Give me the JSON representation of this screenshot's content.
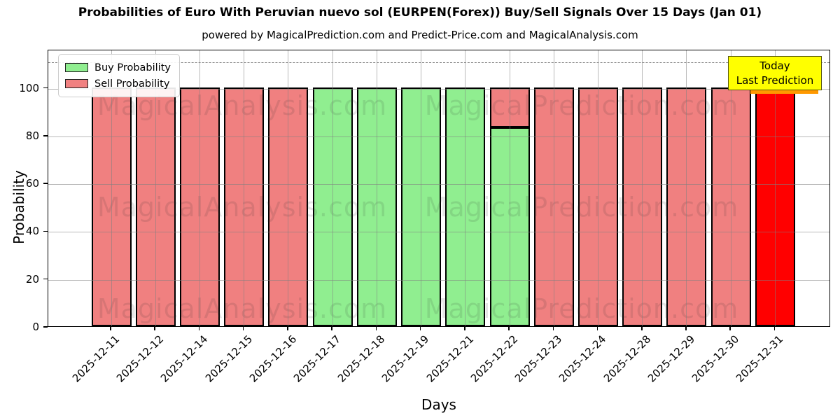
{
  "chart": {
    "title": "Probabilities of Euro With Peruvian nuevo sol (EURPEN(Forex)) Buy/Sell Signals Over 15 Days (Jan 01)",
    "subtitle": "powered by MagicalPrediction.com and Predict-Price.com and MagicalAnalysis.com",
    "xlabel": "Days",
    "ylabel": "Probability",
    "legend": [
      {
        "label": "Buy Probability",
        "color": "#90ee90"
      },
      {
        "label": "Sell Probability",
        "color": "#f08080"
      }
    ],
    "annotation": {
      "line1": "Today",
      "line2": "Last Prediction",
      "bg_color": "#ffff00"
    },
    "watermarks": [
      "MagicalAnalysis.com",
      "MagicalPrediction.com"
    ]
  },
  "chart_data": {
    "type": "bar",
    "stacked": true,
    "title": "Probabilities of Euro With Peruvian nuevo sol (EURPEN(Forex)) Buy/Sell Signals Over 15 Days (Jan 01)",
    "xlabel": "Days",
    "ylabel": "Probability",
    "categories": [
      "2025-12-11",
      "2025-12-12",
      "2025-12-14",
      "2025-12-15",
      "2025-12-16",
      "2025-12-17",
      "2025-12-18",
      "2025-12-19",
      "2025-12-21",
      "2025-12-22",
      "2025-12-23",
      "2025-12-24",
      "2025-12-28",
      "2025-12-29",
      "2025-12-30",
      "2025-12-31"
    ],
    "series": [
      {
        "name": "Buy Probability",
        "color": "#90ee90",
        "values": [
          0,
          0,
          0,
          0,
          0,
          100,
          100,
          100,
          100,
          83.33,
          0,
          0,
          0,
          0,
          0,
          0
        ]
      },
      {
        "name": "Sell Probability",
        "color": "#f08080",
        "values": [
          100,
          100,
          100,
          100,
          100,
          0,
          0,
          0,
          0,
          16.67,
          100,
          100,
          100,
          100,
          100,
          100
        ]
      }
    ],
    "today_index": 15,
    "today_sell_color": "#ff0000",
    "bar_edge_color": "#000000",
    "yticks": [
      0,
      20,
      40,
      60,
      80,
      100
    ],
    "ylim": [
      0,
      116
    ],
    "dashed_line_y": 111,
    "grid": true,
    "legend_position": "upper left"
  }
}
